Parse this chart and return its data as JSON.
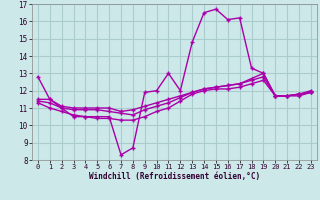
{
  "x": [
    0,
    1,
    2,
    3,
    4,
    5,
    6,
    7,
    8,
    9,
    10,
    11,
    12,
    13,
    14,
    15,
    16,
    17,
    18,
    19,
    20,
    21,
    22,
    23
  ],
  "line1": [
    12.8,
    11.5,
    11.0,
    10.5,
    10.5,
    10.5,
    10.5,
    8.3,
    8.7,
    11.9,
    12.0,
    13.0,
    12.0,
    14.8,
    16.5,
    16.7,
    16.1,
    16.2,
    13.3,
    13.0,
    11.7,
    11.7,
    11.7,
    11.9
  ],
  "line2": [
    11.5,
    11.5,
    11.1,
    11.0,
    11.0,
    11.0,
    11.0,
    10.8,
    10.9,
    11.1,
    11.3,
    11.5,
    11.7,
    11.9,
    12.1,
    12.2,
    12.3,
    12.4,
    12.6,
    12.8,
    11.7,
    11.7,
    11.8,
    11.9
  ],
  "line3": [
    11.4,
    11.3,
    11.0,
    10.9,
    10.9,
    10.9,
    10.8,
    10.7,
    10.6,
    10.9,
    11.1,
    11.3,
    11.6,
    11.9,
    12.1,
    12.2,
    12.3,
    12.4,
    12.7,
    13.0,
    11.7,
    11.7,
    11.8,
    12.0
  ],
  "line4": [
    11.3,
    11.0,
    10.8,
    10.6,
    10.5,
    10.4,
    10.4,
    10.3,
    10.3,
    10.5,
    10.8,
    11.0,
    11.4,
    11.8,
    12.0,
    12.1,
    12.1,
    12.2,
    12.4,
    12.6,
    11.7,
    11.7,
    11.8,
    11.9
  ],
  "color": "#aa00aa",
  "bg_color": "#cce8e8",
  "grid_color": "#aacccc",
  "xlabel": "Windchill (Refroidissement éolien,°C)",
  "ylim": [
    8,
    17
  ],
  "xlim": [
    -0.5,
    23.5
  ],
  "yticks": [
    8,
    9,
    10,
    11,
    12,
    13,
    14,
    15,
    16,
    17
  ],
  "xticks": [
    0,
    1,
    2,
    3,
    4,
    5,
    6,
    7,
    8,
    9,
    10,
    11,
    12,
    13,
    14,
    15,
    16,
    17,
    18,
    19,
    20,
    21,
    22,
    23
  ]
}
